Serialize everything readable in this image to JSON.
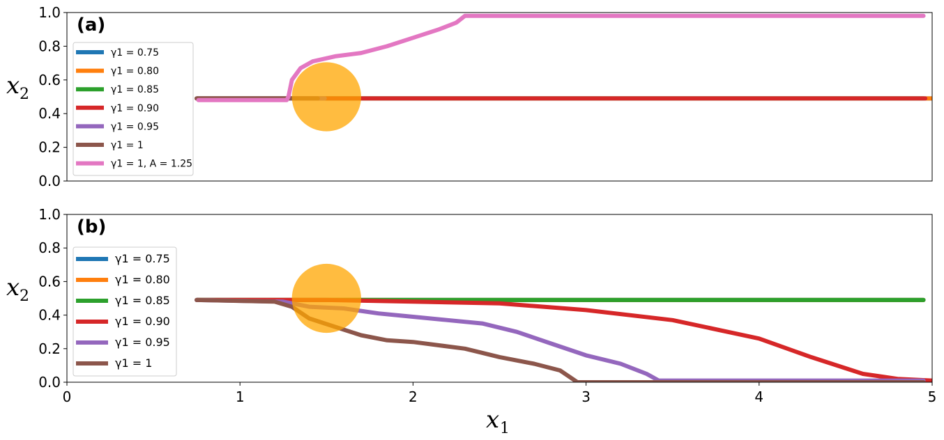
{
  "chart_data": [
    {
      "type": "line",
      "panel_label": "(a)",
      "xlabel": "",
      "ylabel": "x_2",
      "xlim": [
        0,
        5
      ],
      "ylim": [
        0,
        1
      ],
      "yticks": [
        "0.0",
        "0.2",
        "0.4",
        "0.6",
        "0.8",
        "1.0"
      ],
      "legend_placement": "left",
      "grid": false,
      "obstacle": {
        "center": [
          1.5,
          0.5
        ],
        "radius": 0.2,
        "color": "#ffa500",
        "opacity": 0.75
      },
      "series": [
        {
          "name": "γ1 = 0.75",
          "color": "#1f77b4",
          "points": [
            [
              0.75,
              0.49
            ],
            [
              5.0,
              0.49
            ]
          ]
        },
        {
          "name": "γ1 = 0.80",
          "color": "#ff7f0e",
          "points": [
            [
              0.75,
              0.49
            ],
            [
              5.0,
              0.49
            ]
          ]
        },
        {
          "name": "γ1 = 0.85",
          "color": "#2ca02c",
          "points": [
            [
              0.75,
              0.49
            ],
            [
              4.95,
              0.49
            ]
          ]
        },
        {
          "name": "γ1 = 0.90",
          "color": "#d62728",
          "points": [
            [
              0.75,
              0.49
            ],
            [
              4.96,
              0.49
            ]
          ]
        },
        {
          "name": "γ1 = 0.95",
          "color": "#9467bd",
          "points": [
            [
              0.75,
              0.49
            ],
            [
              1.49,
              0.49
            ]
          ]
        },
        {
          "name": "γ1 = 1",
          "color": "#8c564b",
          "points": [
            [
              0.75,
              0.49
            ],
            [
              1.45,
              0.49
            ]
          ]
        },
        {
          "name": "γ1 = 1, A = 1.25",
          "color": "#e377c2",
          "points": [
            [
              0.76,
              0.48
            ],
            [
              1.27,
              0.48
            ],
            [
              1.28,
              0.5
            ],
            [
              1.3,
              0.6
            ],
            [
              1.35,
              0.67
            ],
            [
              1.42,
              0.71
            ],
            [
              1.55,
              0.74
            ],
            [
              1.7,
              0.76
            ],
            [
              1.85,
              0.8
            ],
            [
              2.0,
              0.85
            ],
            [
              2.15,
              0.9
            ],
            [
              2.25,
              0.94
            ],
            [
              2.3,
              0.98
            ],
            [
              4.95,
              0.98
            ]
          ]
        }
      ]
    },
    {
      "type": "line",
      "panel_label": "(b)",
      "xlabel": "x_1",
      "ylabel": "x_2",
      "xlim": [
        0,
        5
      ],
      "ylim": [
        0,
        1
      ],
      "xticks": [
        "0",
        "1",
        "2",
        "3",
        "4",
        "5"
      ],
      "yticks": [
        "0.0",
        "0.2",
        "0.4",
        "0.6",
        "0.8",
        "1.0"
      ],
      "legend_placement": "left",
      "grid": false,
      "obstacle": {
        "center": [
          1.5,
          0.5
        ],
        "radius": 0.2,
        "color": "#ffa500",
        "opacity": 0.75
      },
      "series": [
        {
          "name": "γ1 = 0.75",
          "color": "#1f77b4",
          "points": [
            [
              0.75,
              0.49
            ],
            [
              4.95,
              0.49
            ]
          ]
        },
        {
          "name": "γ1 = 0.80",
          "color": "#ff7f0e",
          "points": [
            [
              0.75,
              0.49
            ],
            [
              4.95,
              0.49
            ]
          ]
        },
        {
          "name": "γ1 = 0.85",
          "color": "#2ca02c",
          "points": [
            [
              0.75,
              0.49
            ],
            [
              4.95,
              0.49
            ]
          ]
        },
        {
          "name": "γ1 = 0.90",
          "color": "#d62728",
          "points": [
            [
              0.75,
              0.49
            ],
            [
              1.5,
              0.49
            ],
            [
              2.0,
              0.48
            ],
            [
              2.5,
              0.47
            ],
            [
              3.0,
              0.43
            ],
            [
              3.5,
              0.37
            ],
            [
              4.0,
              0.26
            ],
            [
              4.3,
              0.15
            ],
            [
              4.6,
              0.05
            ],
            [
              4.8,
              0.02
            ],
            [
              5.0,
              0.01
            ]
          ]
        },
        {
          "name": "γ1 = 0.95",
          "color": "#9467bd",
          "points": [
            [
              0.75,
              0.49
            ],
            [
              1.25,
              0.48
            ],
            [
              1.4,
              0.45
            ],
            [
              1.6,
              0.44
            ],
            [
              1.8,
              0.41
            ],
            [
              2.0,
              0.39
            ],
            [
              2.2,
              0.37
            ],
            [
              2.4,
              0.35
            ],
            [
              2.6,
              0.3
            ],
            [
              2.8,
              0.23
            ],
            [
              3.0,
              0.16
            ],
            [
              3.2,
              0.11
            ],
            [
              3.35,
              0.05
            ],
            [
              3.42,
              0.01
            ],
            [
              4.95,
              0.01
            ]
          ]
        },
        {
          "name": "γ1 = 1",
          "color": "#8c564b",
          "points": [
            [
              0.75,
              0.49
            ],
            [
              1.2,
              0.48
            ],
            [
              1.3,
              0.45
            ],
            [
              1.4,
              0.38
            ],
            [
              1.55,
              0.33
            ],
            [
              1.7,
              0.28
            ],
            [
              1.85,
              0.25
            ],
            [
              2.0,
              0.24
            ],
            [
              2.15,
              0.22
            ],
            [
              2.3,
              0.2
            ],
            [
              2.5,
              0.15
            ],
            [
              2.7,
              0.11
            ],
            [
              2.85,
              0.07
            ],
            [
              2.95,
              0.0
            ],
            [
              4.95,
              0.0
            ]
          ]
        }
      ]
    }
  ]
}
